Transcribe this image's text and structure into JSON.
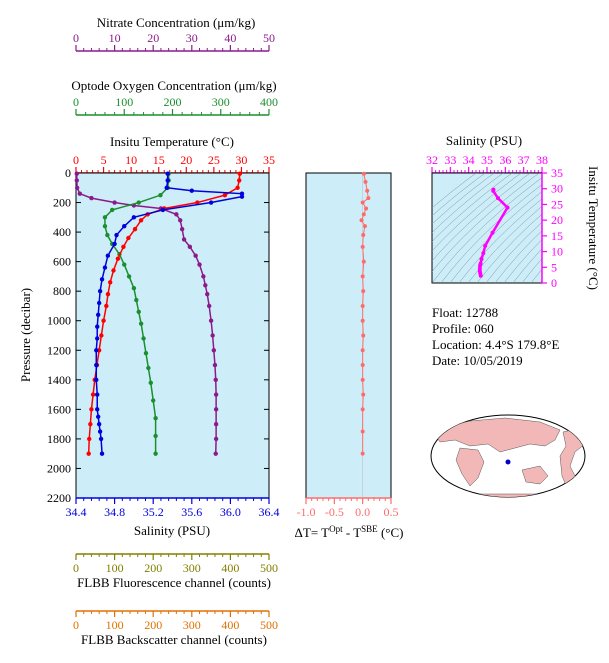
{
  "colors": {
    "nitrate": "#8b1a8b",
    "oxygen": "#1a8f2e",
    "temperature": "#ff0000",
    "salinity": "#0000dd",
    "delta": "#ff6b6b",
    "flbb_fluor": "#808000",
    "flbb_back": "#e07000",
    "ts": "#ff00ff",
    "panel_bg": "#cdeef8"
  },
  "info": {
    "float": "Float:  12788",
    "profile": "Profile:  060",
    "location": "Location:  4.4°S  179.8°E",
    "date": "Date:  10/05/2019"
  },
  "chart_data": [
    {
      "type": "line",
      "panel": "main-profile",
      "ylabel": "Pressure (decibar)",
      "ylim": [
        2200,
        0
      ],
      "yticks": [
        0,
        200,
        400,
        600,
        800,
        1000,
        1200,
        1400,
        1600,
        1800,
        2000,
        2200
      ],
      "axes": {
        "nitrate": {
          "title": "Nitrate Concentration (μm/kg)",
          "min": 0,
          "max": 50,
          "ticks": [
            0,
            10,
            20,
            30,
            40,
            50
          ]
        },
        "oxygen": {
          "title": "Optode Oxygen Concentration (μm/kg)",
          "min": 0,
          "max": 400,
          "ticks": [
            0,
            100,
            200,
            300,
            400
          ]
        },
        "temperature": {
          "title": "Insitu Temperature (°C)",
          "min": 0,
          "max": 35,
          "ticks": [
            0,
            5,
            10,
            15,
            20,
            25,
            30,
            35
          ]
        },
        "salinity": {
          "title": "Salinity (PSU)",
          "min": 34.4,
          "max": 36.4,
          "ticks": [
            "34.4",
            "34.8",
            "35.2",
            "35.6",
            "36.0",
            "36.4"
          ]
        },
        "fluor": {
          "title": "FLBB Fluorescence channel (counts)",
          "min": 0,
          "max": 500,
          "ticks": [
            0,
            100,
            200,
            300,
            400,
            500
          ]
        },
        "back": {
          "title": "FLBB Backscatter channel (counts)",
          "min": 0,
          "max": 500,
          "ticks": [
            0,
            100,
            200,
            300,
            400,
            500
          ]
        }
      },
      "series": [
        {
          "name": "Nitrate",
          "x": [
            0.2,
            0.2,
            0.3,
            1,
            4,
            10,
            15,
            22,
            26,
            27,
            27.5,
            28,
            29.5,
            31,
            32,
            33,
            33.5,
            34,
            34.5,
            35,
            35.4,
            35.7,
            36,
            36.2,
            36.3,
            36.3,
            36.3,
            36.3,
            36.2
          ],
          "y": [
            5,
            50,
            100,
            140,
            170,
            200,
            220,
            240,
            280,
            320,
            380,
            450,
            500,
            560,
            620,
            700,
            760,
            820,
            900,
            1000,
            1100,
            1200,
            1300,
            1400,
            1500,
            1600,
            1700,
            1800,
            1900
          ]
        },
        {
          "name": "Oxygen",
          "x": [
            192,
            192,
            190,
            175,
            130,
            75,
            60,
            60,
            65,
            75,
            90,
            100,
            110,
            120,
            125,
            130,
            135,
            140,
            145,
            150,
            155,
            160,
            165,
            165,
            165
          ],
          "y": [
            5,
            50,
            100,
            150,
            200,
            250,
            300,
            360,
            420,
            480,
            550,
            620,
            700,
            780,
            860,
            940,
            1020,
            1120,
            1220,
            1320,
            1420,
            1540,
            1660,
            1780,
            1900
          ]
        },
        {
          "name": "Temperature",
          "x": [
            29.7,
            29.6,
            29.3,
            27,
            22,
            16,
            13,
            11.8,
            10.7,
            9.5,
            8.6,
            7.6,
            6.8,
            6.2,
            5.8,
            5.5,
            5.0,
            4.6,
            4.2,
            3.8,
            3.4,
            3.1,
            2.8,
            2.6,
            2.4,
            2.3
          ],
          "y": [
            5,
            50,
            100,
            150,
            200,
            240,
            280,
            320,
            380,
            440,
            500,
            580,
            660,
            740,
            820,
            900,
            1000,
            1100,
            1200,
            1300,
            1400,
            1500,
            1600,
            1700,
            1800,
            1900
          ]
        },
        {
          "name": "Salinity",
          "x": [
            35.35,
            35.35,
            35.34,
            35.6,
            36.12,
            36.12,
            35.8,
            35.3,
            35.0,
            34.9,
            34.82,
            34.8,
            34.73,
            34.7,
            34.67,
            34.65,
            34.64,
            34.63,
            34.62,
            34.62,
            34.61,
            34.61,
            34.61,
            34.62,
            34.62,
            34.63,
            34.64,
            34.65,
            34.66,
            34.67
          ],
          "y": [
            5,
            50,
            100,
            120,
            140,
            160,
            200,
            250,
            300,
            360,
            420,
            480,
            560,
            640,
            720,
            800,
            880,
            960,
            1040,
            1120,
            1200,
            1300,
            1400,
            1500,
            1600,
            1650,
            1700,
            1750,
            1800,
            1900
          ]
        }
      ]
    },
    {
      "type": "scatter",
      "panel": "delta-t",
      "xlabel": "ΔT= T^Opt - T^SBE (°C)",
      "xlim": [
        -1.0,
        0.5
      ],
      "xticks": [
        "-1.0",
        "-0.5",
        "0.0",
        "0.5"
      ],
      "ylim": [
        2200,
        0
      ],
      "series": [
        {
          "name": "ΔT",
          "x": [
            0.02,
            0.05,
            0.08,
            0.1,
            0.0,
            0.06,
            0.02,
            -0.02,
            0.04,
            0.01,
            0.0,
            0.02,
            0.0,
            0.01,
            0.0,
            0.0,
            0.01,
            0.0,
            0.0,
            0.0,
            0.01,
            0.0,
            0.0,
            0.0
          ],
          "y": [
            5,
            60,
            120,
            170,
            200,
            240,
            280,
            320,
            360,
            420,
            500,
            600,
            700,
            800,
            900,
            1000,
            1100,
            1200,
            1300,
            1400,
            1500,
            1600,
            1750,
            1900
          ]
        }
      ]
    },
    {
      "type": "line",
      "panel": "ts-diagram",
      "title": "Salinity (PSU)",
      "ylabel": "Insitu Temperature (°C)",
      "xlim": [
        32,
        38
      ],
      "xticks": [
        32,
        33,
        34,
        35,
        36,
        37,
        38
      ],
      "ylim": [
        0,
        35
      ],
      "yticks": [
        0,
        5,
        10,
        15,
        20,
        25,
        30,
        35
      ],
      "series": [
        {
          "name": "T-S",
          "x": [
            35.35,
            35.34,
            35.6,
            36.12,
            35.3,
            34.9,
            34.8,
            34.7,
            34.65,
            34.62,
            34.61,
            34.61,
            34.63,
            34.66
          ],
          "y": [
            29.7,
            29.3,
            27,
            24,
            16,
            11.8,
            9.5,
            7.6,
            6.2,
            5.5,
            4.6,
            3.8,
            3.1,
            2.3
          ]
        }
      ]
    }
  ]
}
